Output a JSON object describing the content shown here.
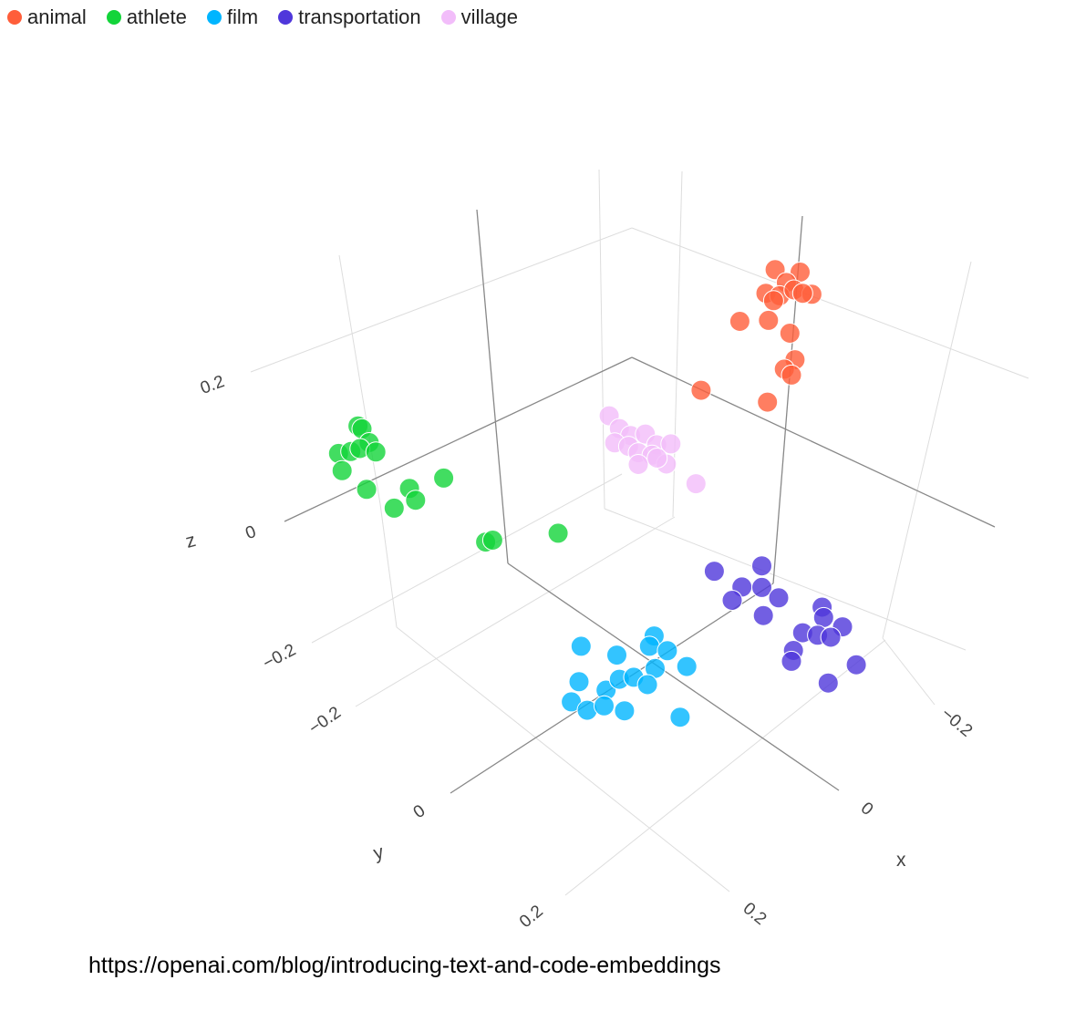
{
  "chart_data": {
    "type": "scatter",
    "dimensions": 3,
    "xlabel": "x",
    "ylabel": "y",
    "zlabel": "z",
    "x_ticks": [
      "−0.2",
      "0",
      "0.2"
    ],
    "y_ticks": [
      "−0.2",
      "0",
      "0.2"
    ],
    "z_ticks": [
      "−0.2",
      "0",
      "0.2"
    ],
    "grid": true,
    "legend_position": "top-left",
    "series": [
      {
        "name": "animal",
        "color": "#FF5E3A",
        "points": [
          [
            -0.205,
            0.063,
            0.25
          ],
          [
            -0.227,
            0.09,
            0.25
          ],
          [
            -0.203,
            0.087,
            0.25
          ],
          [
            -0.172,
            0.078,
            0.25
          ],
          [
            -0.183,
            0.094,
            0.25
          ],
          [
            -0.203,
            0.102,
            0.25
          ],
          [
            -0.216,
            0.124,
            0.25
          ],
          [
            -0.172,
            0.093,
            0.25
          ],
          [
            -0.208,
            0.114,
            0.25
          ],
          [
            -0.118,
            0.081,
            0.25
          ],
          [
            -0.147,
            0.108,
            0.25
          ],
          [
            -0.155,
            0.142,
            0.25
          ],
          [
            -0.133,
            0.174,
            0.25
          ],
          [
            -0.113,
            0.173,
            0.25
          ],
          [
            -0.114,
            0.186,
            0.25
          ],
          [
            -0.01,
            0.113,
            0.25
          ],
          [
            -0.063,
            0.19,
            0.25
          ]
        ]
      },
      {
        "name": "athlete",
        "color": "#13D43A",
        "points": [
          [
            0.258,
            -0.291,
            0.1
          ],
          [
            0.257,
            -0.284,
            0.1
          ],
          [
            0.264,
            -0.263,
            0.1
          ],
          [
            0.305,
            -0.282,
            0.1
          ],
          [
            0.291,
            -0.272,
            0.1
          ],
          [
            0.279,
            -0.266,
            0.1
          ],
          [
            0.267,
            -0.247,
            0.1
          ],
          [
            0.319,
            -0.261,
            0.1
          ],
          [
            0.314,
            -0.218,
            0.1
          ],
          [
            0.271,
            -0.177,
            0.1
          ],
          [
            0.277,
            -0.159,
            0.1
          ],
          [
            0.306,
            -0.172,
            0.1
          ],
          [
            0.227,
            -0.154,
            0.1
          ],
          [
            0.251,
            -0.048,
            0.1
          ],
          [
            0.242,
            -0.043,
            0.1
          ],
          [
            0.171,
            0.014,
            0.1
          ]
        ]
      },
      {
        "name": "film",
        "color": "#00B5FF",
        "points": [
          [
            0.055,
            -0.057,
            -0.2
          ],
          [
            0.029,
            -0.013,
            -0.2
          ],
          [
            -0.027,
            0.004,
            -0.2
          ],
          [
            -0.012,
            0.01,
            -0.2
          ],
          [
            -0.025,
            0.032,
            -0.2
          ],
          [
            -0.028,
            0.067,
            -0.2
          ],
          [
            0.005,
            0.038,
            -0.2
          ],
          [
            0.093,
            -0.023,
            -0.2
          ],
          [
            0.075,
            0.012,
            -0.2
          ],
          [
            0.051,
            0.014,
            -0.2
          ],
          [
            0.035,
            0.026,
            -0.2
          ],
          [
            0.029,
            0.047,
            -0.2
          ],
          [
            0.121,
            -0.01,
            -0.2
          ],
          [
            0.114,
            0.014,
            -0.2
          ],
          [
            0.093,
            0.026,
            -0.2
          ],
          [
            0.078,
            0.051,
            -0.2
          ],
          [
            0.03,
            0.112,
            -0.2
          ]
        ]
      },
      {
        "name": "transportation",
        "color": "#4F37DB",
        "points": [
          [
            -0.117,
            0.032,
            -0.15
          ],
          [
            -0.169,
            0.073,
            -0.15
          ],
          [
            -0.128,
            0.075,
            -0.15
          ],
          [
            -0.147,
            0.095,
            -0.15
          ],
          [
            -0.105,
            0.079,
            -0.15
          ],
          [
            -0.153,
            0.122,
            -0.15
          ],
          [
            -0.12,
            0.125,
            -0.15
          ],
          [
            -0.186,
            0.174,
            -0.15
          ],
          [
            -0.177,
            0.186,
            -0.15
          ],
          [
            -0.186,
            0.214,
            -0.15
          ],
          [
            -0.141,
            0.181,
            -0.15
          ],
          [
            -0.153,
            0.198,
            -0.15
          ],
          [
            -0.164,
            0.213,
            -0.15
          ],
          [
            -0.114,
            0.19,
            -0.15
          ],
          [
            -0.101,
            0.199,
            -0.15
          ],
          [
            -0.115,
            0.257,
            -0.15
          ],
          [
            -0.161,
            0.266,
            -0.15
          ]
        ]
      },
      {
        "name": "village",
        "color": "#F2BDFA",
        "points": [
          [
            -0.033,
            -0.09,
            0.05
          ],
          [
            -0.03,
            -0.067,
            0.05
          ],
          [
            -0.034,
            -0.049,
            0.05
          ],
          [
            -0.05,
            -0.036,
            0.05
          ],
          [
            -0.05,
            -0.014,
            0.05
          ],
          [
            -0.065,
            -0.001,
            0.05
          ],
          [
            -0.011,
            -0.057,
            0.05
          ],
          [
            -0.021,
            -0.04,
            0.05
          ],
          [
            -0.024,
            -0.024,
            0.05
          ],
          [
            -0.035,
            -0.008,
            0.05
          ],
          [
            -0.04,
            0.015,
            0.05
          ],
          [
            -0.012,
            -0.012,
            0.05
          ],
          [
            -0.037,
            0,
            0.05
          ],
          [
            -0.049,
            0.064,
            0.05
          ]
        ]
      }
    ]
  },
  "source_text": "https://openai.com/blog/introducing-text-and-code-embeddings"
}
